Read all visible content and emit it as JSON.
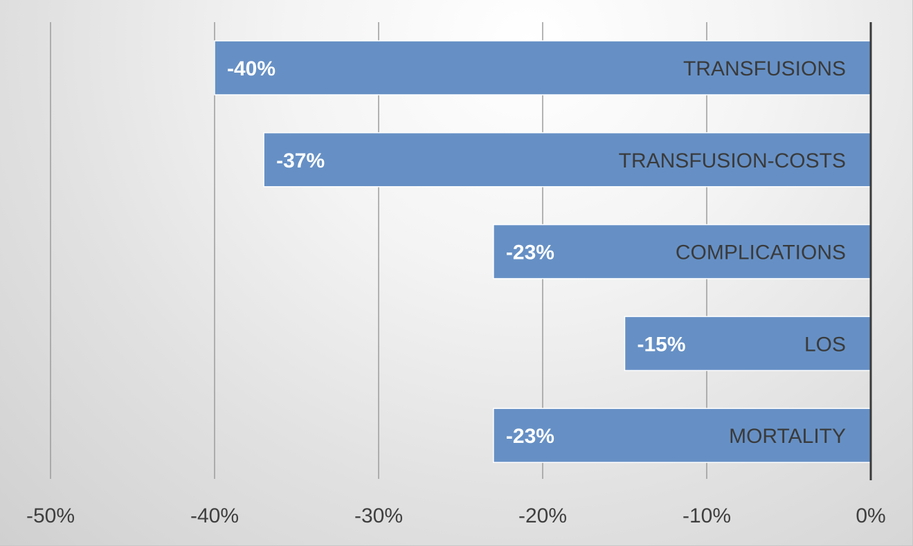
{
  "chart_data": {
    "type": "bar",
    "orientation": "horizontal",
    "title": "",
    "xlabel": "",
    "ylabel": "",
    "categories": [
      "TRANSFUSIONS",
      "TRANSFUSION-COSTS",
      "COMPLICATIONS",
      "LOS",
      "MORTALITY"
    ],
    "values": [
      -40,
      -37,
      -23,
      -15,
      -23
    ],
    "value_labels": [
      "-40%",
      "-37%",
      "-23%",
      "-15%",
      "-23%"
    ],
    "xlim": [
      -50,
      0
    ],
    "x_ticks": [
      -50,
      -40,
      -30,
      -20,
      -10,
      0
    ],
    "x_tick_labels": [
      "-50%",
      "-40%",
      "-30%",
      "-20%",
      "-10%",
      "0%"
    ],
    "grid": true,
    "legend": "none",
    "category_label_position": "inside bar end",
    "value_label_position": "inside bar base",
    "colors": {
      "bar": "#6690c5",
      "grid": "#9b9b9b",
      "axis": "#3a3a3a",
      "value_text": "#ffffff",
      "category_text": "#3a3a3a",
      "tick_text": "#3f3f3f"
    }
  }
}
